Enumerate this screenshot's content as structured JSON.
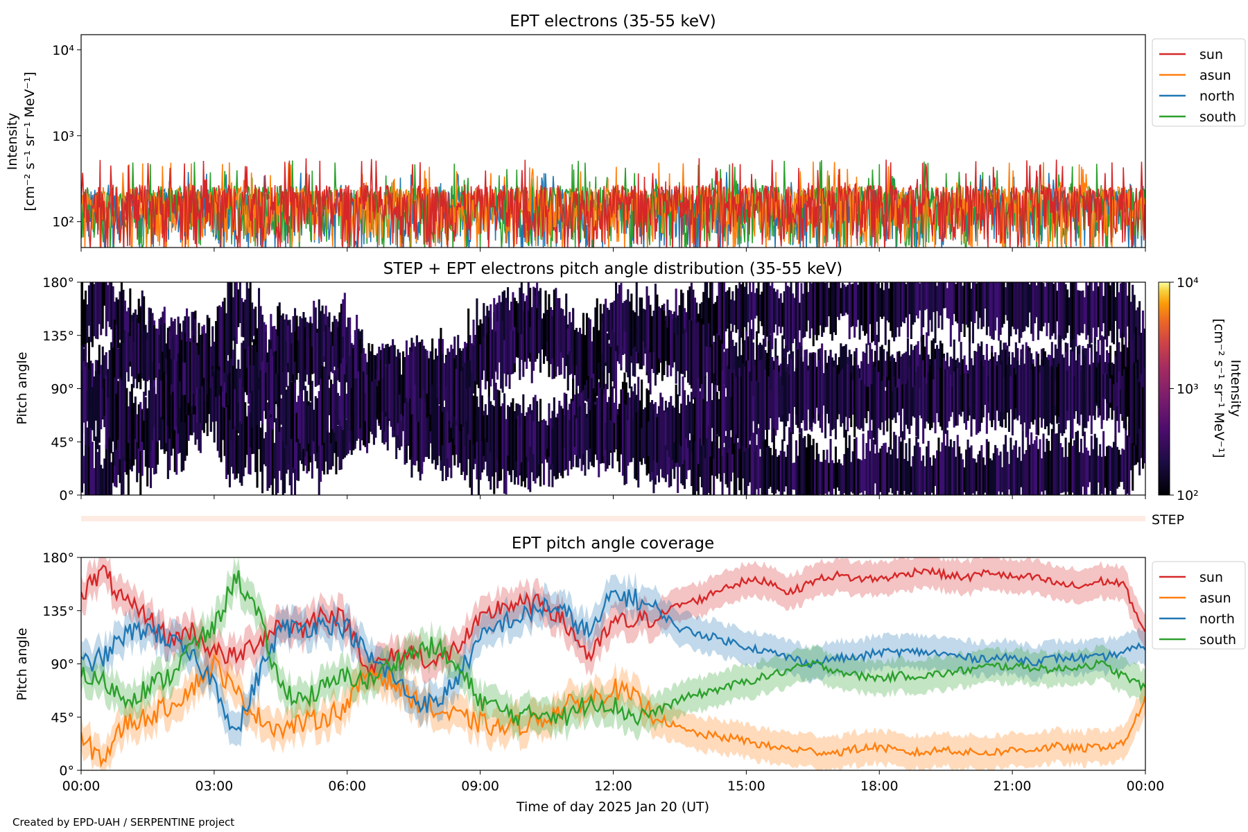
{
  "colors": {
    "sun": "#d62728",
    "asun": "#ff7f0e",
    "north": "#1f77b4",
    "south": "#2ca02c",
    "step_band": "#fdebe3"
  },
  "chart_data": [
    {
      "type": "line",
      "title": "EPT electrons (35-55 keV)",
      "ylabel_line1": "Intensity",
      "ylabel_line2": "[cm⁻² s⁻¹ sr⁻¹ MeV⁻¹]",
      "yscale": "log",
      "ylim": [
        50,
        15000
      ],
      "yticks": [
        {
          "value": 100,
          "label": "10²"
        },
        {
          "value": 1000,
          "label": "10³"
        },
        {
          "value": 10000,
          "label": "10⁴"
        }
      ],
      "xlim_hours": [
        0,
        24
      ],
      "legend_position": "outside-right",
      "series": [
        {
          "name": "sun",
          "color_key": "sun",
          "typical": 150,
          "max": 550
        },
        {
          "name": "asun",
          "color_key": "asun",
          "typical": 140,
          "max": 500
        },
        {
          "name": "north",
          "color_key": "north",
          "typical": 130,
          "max": 380
        },
        {
          "name": "south",
          "color_key": "south",
          "typical": 145,
          "max": 520
        }
      ]
    },
    {
      "type": "heatmap",
      "title": "STEP + EPT electrons pitch angle distribution (35-55 keV)",
      "ylabel": "Pitch angle",
      "yticks": [
        "0°",
        "45°",
        "90°",
        "135°",
        "180°"
      ],
      "ylim": [
        0,
        180
      ],
      "xlim_hours": [
        0,
        24
      ],
      "colorbar": {
        "label_line1": "Intensity",
        "label_line2": "[cm⁻² s⁻¹ sr⁻¹ MeV⁻¹]",
        "scale": "log",
        "range": [
          100,
          10000
        ],
        "ticks": [
          "10²",
          "10³",
          "10⁴"
        ]
      },
      "step_label": "STEP"
    },
    {
      "type": "line",
      "title": "EPT pitch angle coverage",
      "ylabel": "Pitch angle",
      "ylim": [
        0,
        180
      ],
      "yticks": [
        "0°",
        "45°",
        "90°",
        "135°",
        "180°"
      ],
      "xlabel": "Time of day 2025 Jan 20 (UT)",
      "xticks": [
        "00:00",
        "03:00",
        "06:00",
        "09:00",
        "12:00",
        "15:00",
        "18:00",
        "21:00",
        "00:00"
      ],
      "legend_position": "outside-right",
      "series": [
        {
          "name": "sun",
          "color_key": "sun",
          "x": [
            0,
            0.5,
            1,
            1.5,
            2,
            2.5,
            3,
            3.5,
            4,
            4.5,
            5,
            5.5,
            6,
            6.5,
            7,
            7.5,
            8,
            8.5,
            9,
            9.5,
            10,
            10.5,
            11,
            11.5,
            12,
            12.5,
            13,
            13.5,
            14,
            14.5,
            15,
            15.5,
            16,
            16.5,
            17,
            17.5,
            18,
            18.5,
            19,
            19.5,
            20,
            20.5,
            21,
            21.5,
            22,
            22.5,
            23,
            23.5,
            24
          ],
          "y": [
            150,
            168,
            140,
            130,
            110,
            118,
            100,
            95,
            110,
            125,
            120,
            135,
            125,
            85,
            95,
            100,
            90,
            105,
            125,
            140,
            140,
            140,
            120,
            95,
            125,
            125,
            130,
            140,
            145,
            155,
            160,
            160,
            150,
            160,
            165,
            162,
            162,
            165,
            170,
            165,
            163,
            168,
            163,
            163,
            158,
            155,
            160,
            158,
            115
          ]
        },
        {
          "name": "asun",
          "color_key": "asun",
          "x": [
            0,
            0.5,
            1,
            1.5,
            2,
            2.5,
            3,
            3.5,
            4,
            4.5,
            5,
            5.5,
            6,
            6.5,
            7,
            7.5,
            8,
            8.5,
            9,
            9.5,
            10,
            10.5,
            11,
            11.5,
            12,
            12.5,
            13,
            13.5,
            14,
            14.5,
            15,
            15.5,
            16,
            16.5,
            17,
            17.5,
            18,
            18.5,
            19,
            19.5,
            20,
            20.5,
            21,
            21.5,
            22,
            22.5,
            23,
            23.5,
            24
          ],
          "y": [
            25,
            10,
            40,
            45,
            55,
            70,
            90,
            65,
            45,
            35,
            40,
            45,
            55,
            85,
            75,
            60,
            50,
            45,
            40,
            35,
            40,
            45,
            55,
            60,
            70,
            60,
            45,
            35,
            30,
            28,
            25,
            20,
            18,
            16,
            15,
            18,
            20,
            15,
            15,
            18,
            15,
            15,
            17,
            18,
            20,
            18,
            20,
            22,
            60
          ]
        },
        {
          "name": "north",
          "color_key": "north",
          "x": [
            0,
            0.5,
            1,
            1.5,
            2,
            2.5,
            3,
            3.5,
            4,
            4.5,
            5,
            5.5,
            6,
            6.5,
            7,
            7.5,
            8,
            8.5,
            9,
            9.5,
            10,
            10.5,
            11,
            11.5,
            12,
            12.5,
            13,
            13.5,
            14,
            14.5,
            15,
            15.5,
            16,
            16.5,
            17,
            17.5,
            18,
            18.5,
            19,
            19.5,
            20,
            20.5,
            21,
            21.5,
            22,
            22.5,
            23,
            23.5,
            24
          ],
          "y": [
            90,
            95,
            115,
            120,
            110,
            95,
            75,
            30,
            80,
            120,
            120,
            125,
            120,
            95,
            80,
            60,
            55,
            80,
            110,
            125,
            130,
            140,
            130,
            115,
            150,
            145,
            135,
            120,
            115,
            110,
            105,
            100,
            95,
            90,
            95,
            95,
            100,
            100,
            100,
            98,
            95,
            95,
            95,
            92,
            95,
            95,
            95,
            100,
            105
          ]
        },
        {
          "name": "south",
          "color_key": "south",
          "x": [
            0,
            0.5,
            1,
            1.5,
            2,
            2.5,
            3,
            3.5,
            4,
            4.5,
            5,
            5.5,
            6,
            6.5,
            7,
            7.5,
            8,
            8.5,
            9,
            9.5,
            10,
            10.5,
            11,
            11.5,
            12,
            12.5,
            13,
            13.5,
            14,
            14.5,
            15,
            15.5,
            16,
            16.5,
            17,
            17.5,
            18,
            18.5,
            19,
            19.5,
            20,
            20.5,
            21,
            21.5,
            22,
            22.5,
            23,
            23.5,
            24
          ],
          "y": [
            80,
            75,
            60,
            70,
            80,
            105,
            120,
            165,
            130,
            70,
            60,
            70,
            80,
            75,
            90,
            100,
            105,
            85,
            60,
            50,
            45,
            50,
            45,
            60,
            55,
            45,
            50,
            60,
            65,
            70,
            75,
            80,
            85,
            90,
            85,
            80,
            78,
            80,
            80,
            82,
            85,
            88,
            88,
            87,
            85,
            88,
            90,
            80,
            70
          ]
        }
      ]
    }
  ],
  "credit": "Created by EPD-UAH / SERPENTINE project"
}
